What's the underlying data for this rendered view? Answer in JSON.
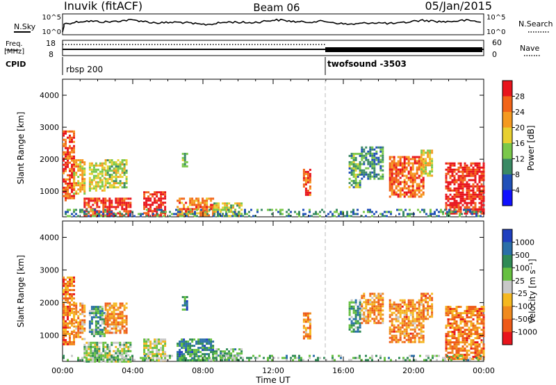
{
  "header": {
    "station": "Inuvik (fitACF)",
    "beam": "Beam 06",
    "date": "05/Jan/2015"
  },
  "top_panels": {
    "nsky_label": "N.Sky",
    "nsky_tick_high": "10^5",
    "nsky_tick_low": "10^0",
    "nsearch_label": "N.Search",
    "nsearch_tick_high": "10^5",
    "nsearch_tick_low": "10^0",
    "freq_label_line1": "Freq.",
    "freq_label_line2": "[MHz]",
    "freq_tick_high": "18",
    "freq_tick_low": "8",
    "nave_label": "Nave",
    "nave_tick_high": "60",
    "nave_tick_low": "0",
    "cpid_label": "CPID",
    "cpid_left": "rbsp 200",
    "cpid_right": "twofsound -3503"
  },
  "chart_data": [
    {
      "type": "heatmap",
      "title": "",
      "ylabel": "Slant Range [km]",
      "xlabel": "",
      "x_ticks": [
        "00:00",
        "04:00",
        "08:00",
        "12:00",
        "16:00",
        "20:00",
        "00:00"
      ],
      "y_ticks": [
        1000,
        2000,
        3000,
        4000
      ],
      "ylim": [
        200,
        4500
      ],
      "colorbar_label": "Power [dB]",
      "colorbar_ticks": [
        "4",
        "8",
        "12",
        "16",
        "20",
        "24",
        "28"
      ],
      "colors": [
        "#1010ff",
        "#2050b8",
        "#3a8a64",
        "#7ac84a",
        "#e8d030",
        "#f59a20",
        "#f26418",
        "#e8141c"
      ],
      "regions": [
        {
          "t0": 0.0,
          "t1": 0.6,
          "r0": 700,
          "r1": 2900,
          "level": 0.85
        },
        {
          "t0": 0.6,
          "t1": 1.2,
          "r0": 900,
          "r1": 2000,
          "level": 0.6
        },
        {
          "t0": 1.5,
          "t1": 2.4,
          "r0": 1000,
          "r1": 1900,
          "level": 0.55
        },
        {
          "t0": 2.4,
          "t1": 3.6,
          "r0": 1100,
          "r1": 2000,
          "level": 0.5
        },
        {
          "t0": 1.2,
          "t1": 3.9,
          "r0": 220,
          "r1": 800,
          "level": 0.9
        },
        {
          "t0": 4.6,
          "t1": 5.8,
          "r0": 250,
          "r1": 1000,
          "level": 0.95
        },
        {
          "t0": 6.8,
          "t1": 7.1,
          "r0": 1800,
          "r1": 2200,
          "level": 0.45
        },
        {
          "t0": 6.5,
          "t1": 8.6,
          "r0": 250,
          "r1": 800,
          "level": 0.75
        },
        {
          "t0": 8.6,
          "t1": 10.2,
          "r0": 250,
          "r1": 650,
          "level": 0.5
        },
        {
          "t0": 13.7,
          "t1": 14.1,
          "r0": 900,
          "r1": 1700,
          "level": 0.85
        },
        {
          "t0": 16.3,
          "t1": 17.0,
          "r0": 1100,
          "r1": 2200,
          "level": 0.35
        },
        {
          "t0": 17.0,
          "t1": 18.2,
          "r0": 1400,
          "r1": 2400,
          "level": 0.3
        },
        {
          "t0": 18.6,
          "t1": 20.6,
          "r0": 800,
          "r1": 2100,
          "level": 0.8
        },
        {
          "t0": 20.4,
          "t1": 21.1,
          "r0": 1500,
          "r1": 2300,
          "level": 0.55
        },
        {
          "t0": 21.8,
          "t1": 24.0,
          "r0": 280,
          "r1": 1900,
          "level": 0.95
        },
        {
          "t0": 0.0,
          "t1": 24.0,
          "r0": 220,
          "r1": 450,
          "level": 0.3
        }
      ]
    },
    {
      "type": "heatmap",
      "title": "",
      "ylabel": "Slant Range [km]",
      "xlabel": "Time UT",
      "x_ticks": [
        "00:00",
        "04:00",
        "08:00",
        "12:00",
        "16:00",
        "20:00",
        "00:00"
      ],
      "y_ticks": [
        1000,
        2000,
        3000,
        4000
      ],
      "ylim": [
        200,
        4500
      ],
      "colorbar_label": "Velocity [m s⁻¹]",
      "colorbar_ticks": [
        "1000",
        "500",
        "100",
        "25",
        "-25",
        "-100",
        "-500",
        "-1000"
      ],
      "colors": [
        "#1f3fbf",
        "#2a6fa8",
        "#2f8a55",
        "#66c040",
        "#c8c8c8",
        "#f5b820",
        "#f08a1e",
        "#ee5a18",
        "#e8141c"
      ],
      "regions": [
        {
          "t0": 0.0,
          "t1": 0.6,
          "r0": 700,
          "r1": 2800,
          "level": 0.75
        },
        {
          "t0": 0.6,
          "t1": 1.2,
          "r0": 900,
          "r1": 2000,
          "level": 0.7
        },
        {
          "t0": 1.5,
          "t1": 2.4,
          "r0": 1000,
          "r1": 1900,
          "level": 0.3
        },
        {
          "t0": 2.4,
          "t1": 3.6,
          "r0": 1100,
          "r1": 2000,
          "level": 0.7
        },
        {
          "t0": 1.2,
          "t1": 3.9,
          "r0": 220,
          "r1": 800,
          "level": 0.45
        },
        {
          "t0": 4.6,
          "t1": 5.8,
          "r0": 250,
          "r1": 900,
          "level": 0.5
        },
        {
          "t0": 6.8,
          "t1": 7.1,
          "r0": 1800,
          "r1": 2200,
          "level": 0.25
        },
        {
          "t0": 6.5,
          "t1": 8.6,
          "r0": 250,
          "r1": 900,
          "level": 0.25
        },
        {
          "t0": 8.6,
          "t1": 10.2,
          "r0": 250,
          "r1": 600,
          "level": 0.35
        },
        {
          "t0": 13.7,
          "t1": 14.1,
          "r0": 900,
          "r1": 1700,
          "level": 0.7
        },
        {
          "t0": 16.3,
          "t1": 17.0,
          "r0": 1100,
          "r1": 2100,
          "level": 0.3
        },
        {
          "t0": 17.0,
          "t1": 18.2,
          "r0": 1400,
          "r1": 2300,
          "level": 0.7
        },
        {
          "t0": 18.6,
          "t1": 20.6,
          "r0": 800,
          "r1": 2100,
          "level": 0.72
        },
        {
          "t0": 20.4,
          "t1": 21.1,
          "r0": 1500,
          "r1": 2300,
          "level": 0.72
        },
        {
          "t0": 21.8,
          "t1": 24.0,
          "r0": 280,
          "r1": 1900,
          "level": 0.75
        },
        {
          "t0": 0.0,
          "t1": 24.0,
          "r0": 220,
          "r1": 400,
          "level": 0.38
        }
      ]
    }
  ]
}
